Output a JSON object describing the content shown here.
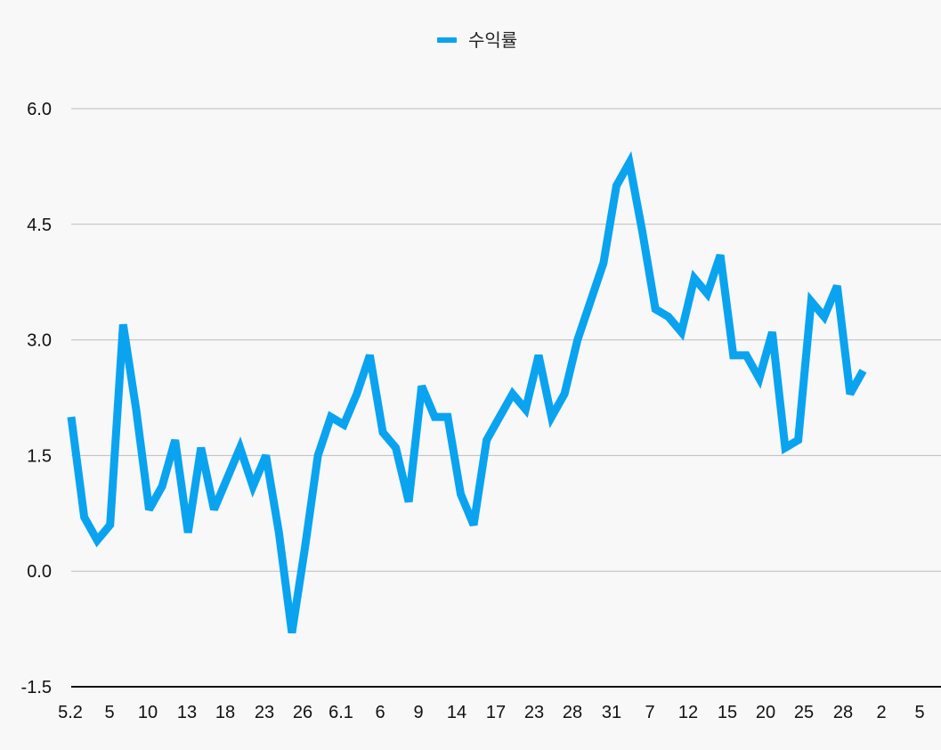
{
  "chart_data": {
    "type": "line",
    "legend": {
      "position": "top-center",
      "entries": [
        "수익률"
      ]
    },
    "series": [
      {
        "name": "수익률",
        "color": "#0aa3f0",
        "values": [
          2.0,
          0.7,
          0.4,
          0.6,
          3.2,
          2.1,
          0.8,
          1.1,
          1.7,
          0.5,
          1.6,
          0.8,
          1.2,
          1.6,
          1.1,
          1.5,
          0.5,
          -0.8,
          0.3,
          1.5,
          2.0,
          1.9,
          2.3,
          2.8,
          1.8,
          1.6,
          0.9,
          2.4,
          2.0,
          2.0,
          1.0,
          0.6,
          1.7,
          2.0,
          2.3,
          2.1,
          2.8,
          2.0,
          2.3,
          3.0,
          3.5,
          4.0,
          5.0,
          5.3,
          4.4,
          3.4,
          3.3,
          3.1,
          3.8,
          3.6,
          4.1,
          2.8,
          2.8,
          2.5,
          3.1,
          1.6,
          1.7,
          3.5,
          3.3,
          3.7,
          2.3,
          2.6
        ]
      }
    ],
    "x_tick_labels": [
      "5.2",
      "5",
      "10",
      "13",
      "18",
      "23",
      "26",
      "6.1",
      "6",
      "9",
      "14",
      "17",
      "23",
      "28",
      "31",
      "7",
      "12",
      "15",
      "20",
      "25",
      "28",
      "2",
      "5"
    ],
    "x_axis": {
      "slot_count": 68
    },
    "y_axis": {
      "min": -1.5,
      "max": 6.0,
      "ticks": [
        "6.0",
        "4.5",
        "3.0",
        "1.5",
        "0.0",
        "-1.5"
      ],
      "tick_values": [
        6.0,
        4.5,
        3.0,
        1.5,
        0.0,
        -1.5
      ]
    },
    "grid": {
      "horizontal": true,
      "vertical": false,
      "color": "#bdbdbd"
    },
    "axis_color": "#111111"
  }
}
